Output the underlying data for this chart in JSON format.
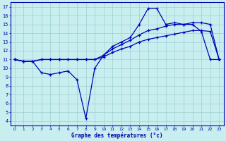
{
  "title": "Graphe des températures (°c)",
  "bg_color": "#c8eef0",
  "grid_color": "#9dcfcf",
  "line_color": "#0000bb",
  "xlim": [
    -0.5,
    23.5
  ],
  "ylim": [
    3.5,
    17.5
  ],
  "yticks": [
    4,
    5,
    6,
    7,
    8,
    9,
    10,
    11,
    12,
    13,
    14,
    15,
    16,
    17
  ],
  "xticks": [
    0,
    1,
    2,
    3,
    4,
    5,
    6,
    7,
    8,
    9,
    10,
    11,
    12,
    13,
    14,
    15,
    16,
    17,
    18,
    19,
    20,
    21,
    22,
    23
  ],
  "series": [
    {
      "x": [
        0,
        1,
        2,
        3,
        4,
        5,
        6,
        7,
        8,
        9,
        10,
        11,
        12,
        13,
        14,
        15,
        16,
        17,
        18,
        19,
        20,
        21,
        22,
        23
      ],
      "y": [
        11.0,
        10.8,
        10.8,
        9.5,
        9.3,
        9.5,
        9.7,
        8.7,
        4.3,
        10.0,
        11.5,
        12.5,
        13.0,
        13.5,
        15.0,
        16.8,
        16.8,
        15.0,
        15.2,
        15.0,
        15.0,
        14.2,
        11.0,
        11.0
      ]
    },
    {
      "x": [
        0,
        1,
        2,
        3,
        4,
        5,
        6,
        7,
        8,
        9,
        10,
        11,
        12,
        13,
        14,
        15,
        16,
        17,
        18,
        19,
        20,
        21,
        22,
        23
      ],
      "y": [
        11.0,
        10.8,
        10.8,
        11.0,
        11.0,
        11.0,
        11.0,
        11.0,
        11.0,
        11.0,
        11.5,
        12.2,
        12.7,
        13.2,
        13.8,
        14.3,
        14.5,
        14.8,
        15.0,
        15.0,
        15.2,
        15.2,
        15.0,
        11.0
      ]
    },
    {
      "x": [
        0,
        1,
        2,
        3,
        4,
        5,
        6,
        7,
        8,
        9,
        10,
        11,
        12,
        13,
        14,
        15,
        16,
        17,
        18,
        19,
        20,
        21,
        22,
        23
      ],
      "y": [
        11.0,
        10.8,
        10.8,
        11.0,
        11.0,
        11.0,
        11.0,
        11.0,
        11.0,
        11.0,
        11.3,
        11.8,
        12.2,
        12.5,
        13.0,
        13.3,
        13.5,
        13.7,
        13.9,
        14.1,
        14.3,
        14.3,
        14.2,
        11.0
      ]
    }
  ]
}
